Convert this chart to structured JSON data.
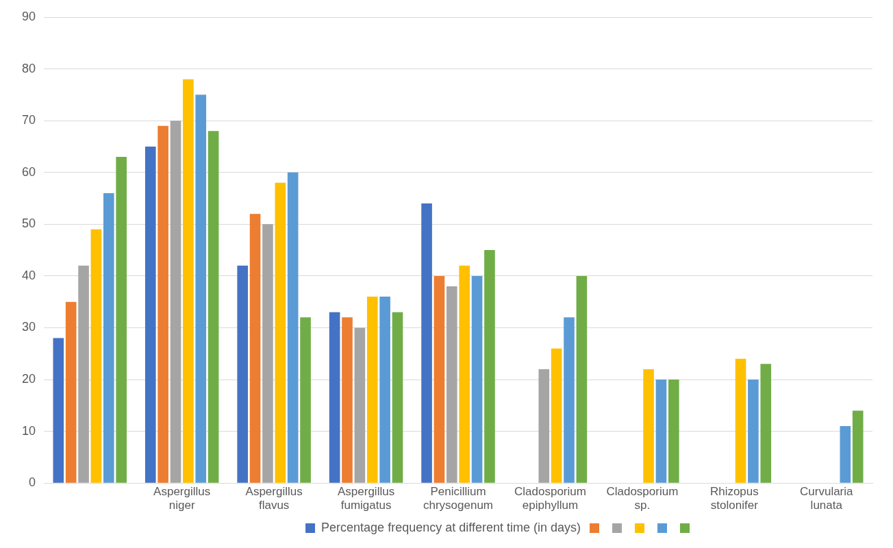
{
  "chart_data": {
    "type": "bar",
    "categories": [
      null,
      "Aspergillus niger",
      "Aspergillus flavus",
      "Aspergillus fumigatus",
      "Penicillium chrysogenum",
      "Cladosporium epiphyllum",
      "Cladosporium sp.",
      "Rhizopus stolonifer",
      "Curvularia lunata"
    ],
    "series": [
      {
        "name": "Percentage frequency at different time (in days)",
        "color": "#4472c4",
        "values": [
          28,
          65,
          42,
          33,
          54,
          null,
          null,
          null,
          null
        ]
      },
      {
        "color": "#ed7d31",
        "values": [
          35,
          69,
          52,
          32,
          40,
          null,
          null,
          null,
          null
        ]
      },
      {
        "color": "#a5a5a5",
        "values": [
          42,
          70,
          50,
          30,
          38,
          22,
          null,
          null,
          null
        ]
      },
      {
        "color": "#ffc000",
        "values": [
          49,
          78,
          58,
          36,
          42,
          26,
          22,
          24,
          null
        ]
      },
      {
        "color": "#5b9bd5",
        "values": [
          56,
          75,
          60,
          36,
          40,
          32,
          20,
          20,
          11
        ]
      },
      {
        "color": "#70ad47",
        "values": [
          63,
          68,
          32,
          33,
          45,
          40,
          20,
          23,
          14
        ]
      }
    ],
    "ylim": [
      0,
      90
    ],
    "yticks": [
      0,
      10,
      20,
      30,
      40,
      50,
      60,
      70,
      80,
      90
    ],
    "grid": "y",
    "legend": "bottom"
  }
}
